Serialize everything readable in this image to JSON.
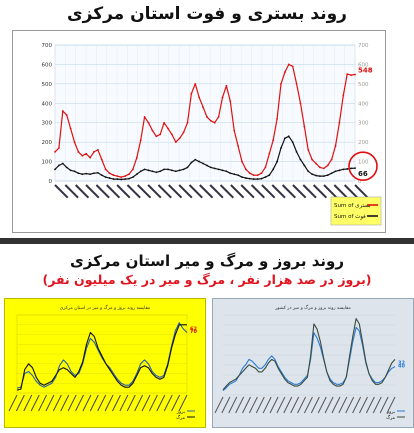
{
  "titles": {
    "top": "روند بستری و فوت استان مرکزی",
    "bottom": "روند بروز و مرگ و میر استان مرکزی",
    "bottom_sub": "(بروز در صد هزار نفر ، مرگ و میر در یک میلیون نفر)"
  },
  "chart_data": [
    {
      "type": "line",
      "ylim": [
        0,
        700
      ],
      "y_ticks": [
        0,
        100,
        200,
        300,
        400,
        500,
        600,
        700
      ],
      "grid": true,
      "legend_position": "right",
      "series": [
        {
          "name": "Sum of بستری",
          "color": "#e01010",
          "values": [
            150,
            170,
            360,
            340,
            270,
            200,
            150,
            130,
            140,
            120,
            150,
            160,
            110,
            60,
            40,
            30,
            25,
            20,
            25,
            35,
            60,
            120,
            210,
            330,
            300,
            260,
            230,
            240,
            300,
            270,
            240,
            200,
            220,
            250,
            300,
            450,
            500,
            430,
            380,
            330,
            310,
            300,
            330,
            430,
            490,
            410,
            260,
            180,
            100,
            60,
            40,
            30,
            30,
            40,
            70,
            140,
            210,
            320,
            500,
            560,
            600,
            590,
            500,
            400,
            280,
            160,
            110,
            90,
            70,
            65,
            80,
            110,
            180,
            300,
            440,
            550,
            545,
            548
          ],
          "end_label": "548"
        },
        {
          "name": "Sum of فوت",
          "color": "#111111",
          "values": [
            60,
            80,
            90,
            70,
            55,
            50,
            40,
            35,
            38,
            35,
            40,
            42,
            30,
            20,
            15,
            10,
            10,
            8,
            10,
            12,
            20,
            35,
            50,
            60,
            55,
            50,
            45,
            50,
            60,
            60,
            55,
            50,
            55,
            60,
            70,
            95,
            110,
            100,
            90,
            80,
            70,
            65,
            60,
            55,
            50,
            40,
            35,
            30,
            20,
            15,
            12,
            10,
            10,
            12,
            20,
            30,
            60,
            100,
            170,
            220,
            230,
            200,
            150,
            110,
            80,
            50,
            35,
            28,
            25,
            25,
            30,
            40,
            50,
            55,
            60,
            62,
            65,
            66
          ],
          "end_label": "66"
        }
      ]
    },
    {
      "type": "line",
      "title": "مقایسه روند بروز و مرگ و میر در استان مرکزی",
      "series": [
        {
          "name": "بروز",
          "color": "#2b5fa8",
          "values": [
            5,
            6,
            20,
            22,
            18,
            12,
            8,
            6,
            8,
            10,
            16,
            28,
            34,
            30,
            22,
            18,
            20,
            30,
            46,
            56,
            52,
            44,
            36,
            30,
            26,
            20,
            14,
            10,
            8,
            8,
            12,
            20,
            30,
            34,
            30,
            22,
            18,
            16,
            18,
            30,
            48,
            64,
            72,
            66,
            62
          ],
          "end_label": "62"
        },
        {
          "name": "مرگ",
          "color": "#111111",
          "values": [
            3,
            4,
            24,
            30,
            26,
            16,
            10,
            8,
            10,
            12,
            18,
            24,
            26,
            24,
            20,
            16,
            22,
            32,
            50,
            62,
            58,
            46,
            38,
            30,
            24,
            18,
            12,
            8,
            6,
            6,
            10,
            18,
            26,
            28,
            26,
            20,
            16,
            14,
            16,
            28,
            46,
            60,
            70,
            70,
            70
          ],
          "end_label": "70"
        }
      ],
      "end_labels_color": "#e01010"
    },
    {
      "type": "line",
      "title": "مقایسه روند بروز و مرگ و میر در کشور",
      "series": [
        {
          "name": "بروز",
          "color": "#2b7bd6",
          "values": [
            5,
            8,
            12,
            14,
            16,
            22,
            30,
            34,
            40,
            38,
            34,
            30,
            30,
            34,
            40,
            44,
            40,
            32,
            26,
            20,
            16,
            14,
            12,
            12,
            14,
            18,
            22,
            40,
            70,
            64,
            54,
            40,
            26,
            18,
            14,
            12,
            12,
            14,
            20,
            40,
            60,
            76,
            72,
            56,
            36,
            24,
            18,
            14,
            14,
            16,
            20,
            26,
            30,
            32
          ],
          "end_label": "32"
        },
        {
          "name": "مرگ",
          "color": "#3b4b3b",
          "values": [
            6,
            10,
            14,
            16,
            18,
            22,
            26,
            30,
            34,
            32,
            30,
            26,
            26,
            30,
            36,
            40,
            38,
            30,
            24,
            18,
            14,
            12,
            10,
            10,
            12,
            16,
            20,
            44,
            80,
            74,
            60,
            42,
            26,
            16,
            12,
            10,
            10,
            12,
            20,
            44,
            66,
            86,
            80,
            60,
            38,
            24,
            16,
            12,
            12,
            14,
            20,
            28,
            36,
            40
          ],
          "end_label": "40"
        }
      ],
      "end_labels_color": "#2b7bd6"
    }
  ],
  "legend1": {
    "item1": "Sum of بستری",
    "item2": "Sum of فوت"
  }
}
